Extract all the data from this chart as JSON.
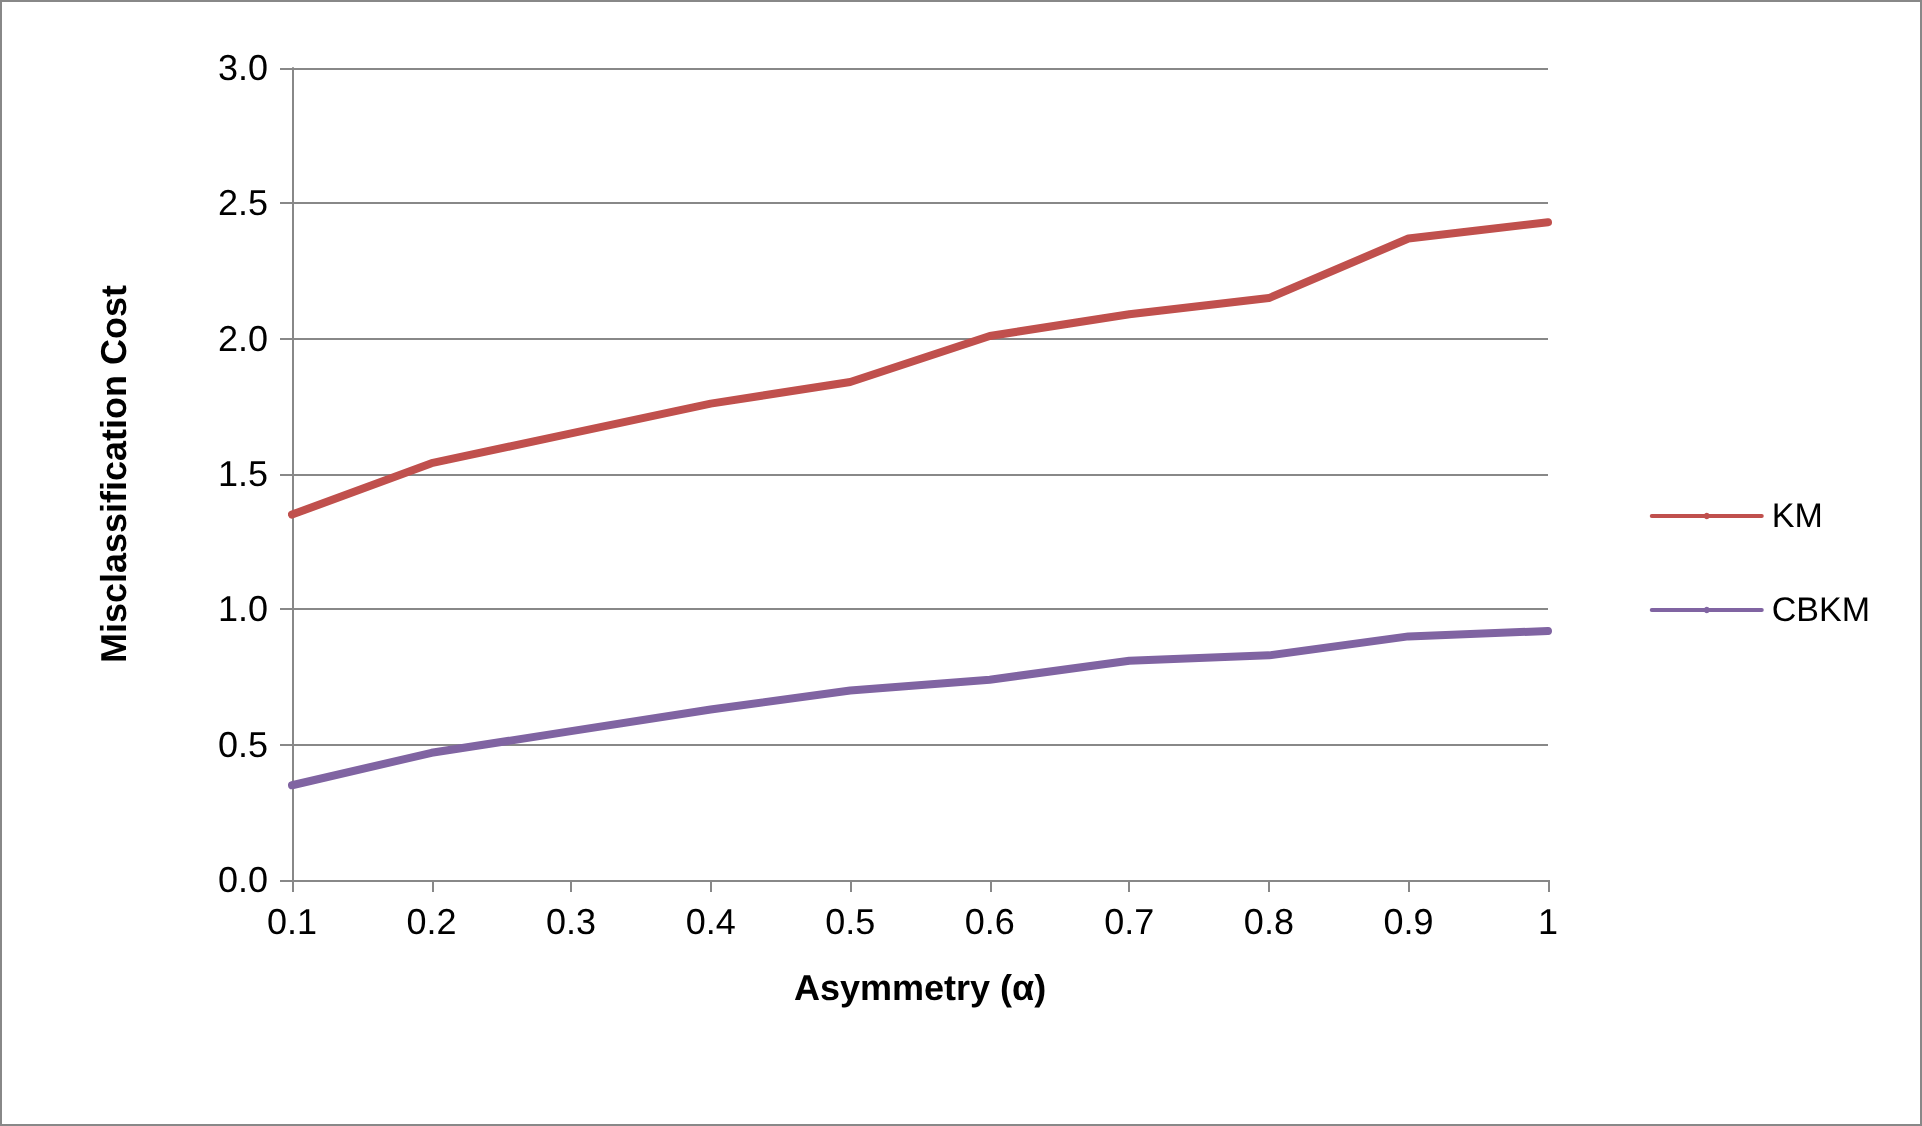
{
  "chart_data": {
    "type": "line",
    "xlabel": "Asymmetry (α)",
    "ylabel": "Misclassification Cost",
    "categories": [
      "0.1",
      "0.2",
      "0.3",
      "0.4",
      "0.5",
      "0.6",
      "0.7",
      "0.8",
      "0.9",
      "1"
    ],
    "series": [
      {
        "name": "KM",
        "color": "#c0504d",
        "values": [
          1.35,
          1.54,
          1.65,
          1.76,
          1.84,
          2.01,
          2.09,
          2.15,
          2.37,
          2.43
        ]
      },
      {
        "name": "CBKM",
        "color": "#8064a2",
        "values": [
          0.35,
          0.47,
          0.55,
          0.63,
          0.7,
          0.74,
          0.81,
          0.83,
          0.9,
          0.92
        ]
      }
    ],
    "ylim": [
      0,
      3
    ],
    "yticks": [
      {
        "value": 0,
        "label": "0.0"
      },
      0.5,
      {
        "value": 1,
        "label": "1.0"
      },
      1.5,
      {
        "value": 2,
        "label": "2.0"
      },
      2.5,
      {
        "value": 3,
        "label": "3.0"
      }
    ],
    "grid": "y",
    "legend": "right",
    "marker": "none",
    "line_style": "solid"
  }
}
